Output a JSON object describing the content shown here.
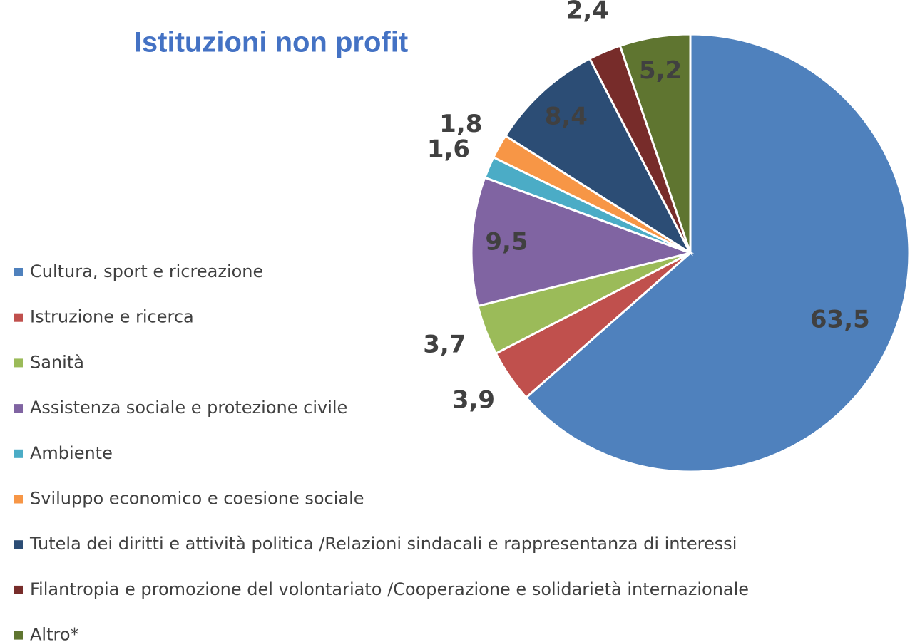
{
  "chart_data": {
    "type": "pie",
    "title": "Istituzioni non profit",
    "categories": [
      "Cultura, sport e ricreazione",
      "Istruzione e ricerca",
      "Sanità",
      "Assistenza sociale e protezione civile",
      "Ambiente",
      "Sviluppo economico e coesione sociale",
      "Tutela dei diritti e attività politica /Relazioni sindacali e rappresentanza di interessi",
      "Filantropia e promozione del volontariato /Cooperazione e solidarietà internazionale",
      "Altro*"
    ],
    "values": [
      63.5,
      3.9,
      3.7,
      9.5,
      1.6,
      1.8,
      8.4,
      2.4,
      5.2
    ],
    "value_labels": [
      "63,5",
      "3,9",
      "3,7",
      "9,5",
      "1,6",
      "1,8",
      "8,4",
      "2,4",
      "5,2"
    ],
    "colors": [
      "#4f81bd",
      "#c0504d",
      "#9bbb59",
      "#8064a2",
      "#4bacc6",
      "#f79646",
      "#2c4d75",
      "#772c2a",
      "#5f7530"
    ],
    "legend": "left"
  }
}
